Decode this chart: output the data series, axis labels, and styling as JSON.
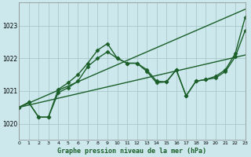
{
  "title": "Graphe pression niveau de la mer (hPa)",
  "background_color": "#cce8ed",
  "grid_color": "#aac8cc",
  "line_color": "#1a5e28",
  "xlim": [
    0,
    23
  ],
  "ylim": [
    1019.5,
    1023.7
  ],
  "xticks": [
    0,
    1,
    2,
    3,
    4,
    5,
    6,
    7,
    8,
    9,
    10,
    11,
    12,
    13,
    14,
    15,
    16,
    17,
    18,
    19,
    20,
    21,
    22,
    23
  ],
  "yticks": [
    1020,
    1021,
    1022,
    1023
  ],
  "series": [
    {
      "x": [
        0,
        23
      ],
      "y": [
        1020.5,
        1023.5
      ],
      "marker": null,
      "linewidth": 1.0
    },
    {
      "x": [
        0,
        23
      ],
      "y": [
        1020.5,
        1022.1
      ],
      "marker": null,
      "linewidth": 1.0
    },
    {
      "x": [
        0,
        1,
        2,
        3,
        4,
        5,
        6,
        7,
        8,
        9,
        10,
        11,
        12,
        13,
        14,
        15,
        16,
        17,
        18,
        19,
        20,
        21,
        22,
        23
      ],
      "y": [
        1020.5,
        1020.65,
        1020.2,
        1020.2,
        1021.05,
        1021.25,
        1021.5,
        1021.85,
        1022.25,
        1022.45,
        1022.0,
        1021.85,
        1021.85,
        1021.65,
        1021.3,
        1021.28,
        1021.65,
        1020.85,
        1021.3,
        1021.35,
        1021.45,
        1021.65,
        1022.15,
        1023.25
      ],
      "marker": "D",
      "markersize": 2.5,
      "linewidth": 1.0
    },
    {
      "x": [
        0,
        1,
        2,
        3,
        4,
        5,
        6,
        7,
        8,
        9,
        10,
        11,
        12,
        13,
        14,
        15,
        16,
        17,
        18,
        19,
        20,
        21,
        22,
        23
      ],
      "y": [
        1020.5,
        1020.65,
        1020.2,
        1020.2,
        1020.95,
        1021.1,
        1021.3,
        1021.75,
        1022.0,
        1022.2,
        1022.0,
        1021.85,
        1021.85,
        1021.6,
        1021.25,
        1021.28,
        1021.65,
        1020.85,
        1021.3,
        1021.35,
        1021.4,
        1021.6,
        1022.05,
        1022.85
      ],
      "marker": "D",
      "markersize": 2.5,
      "linewidth": 1.0
    }
  ]
}
